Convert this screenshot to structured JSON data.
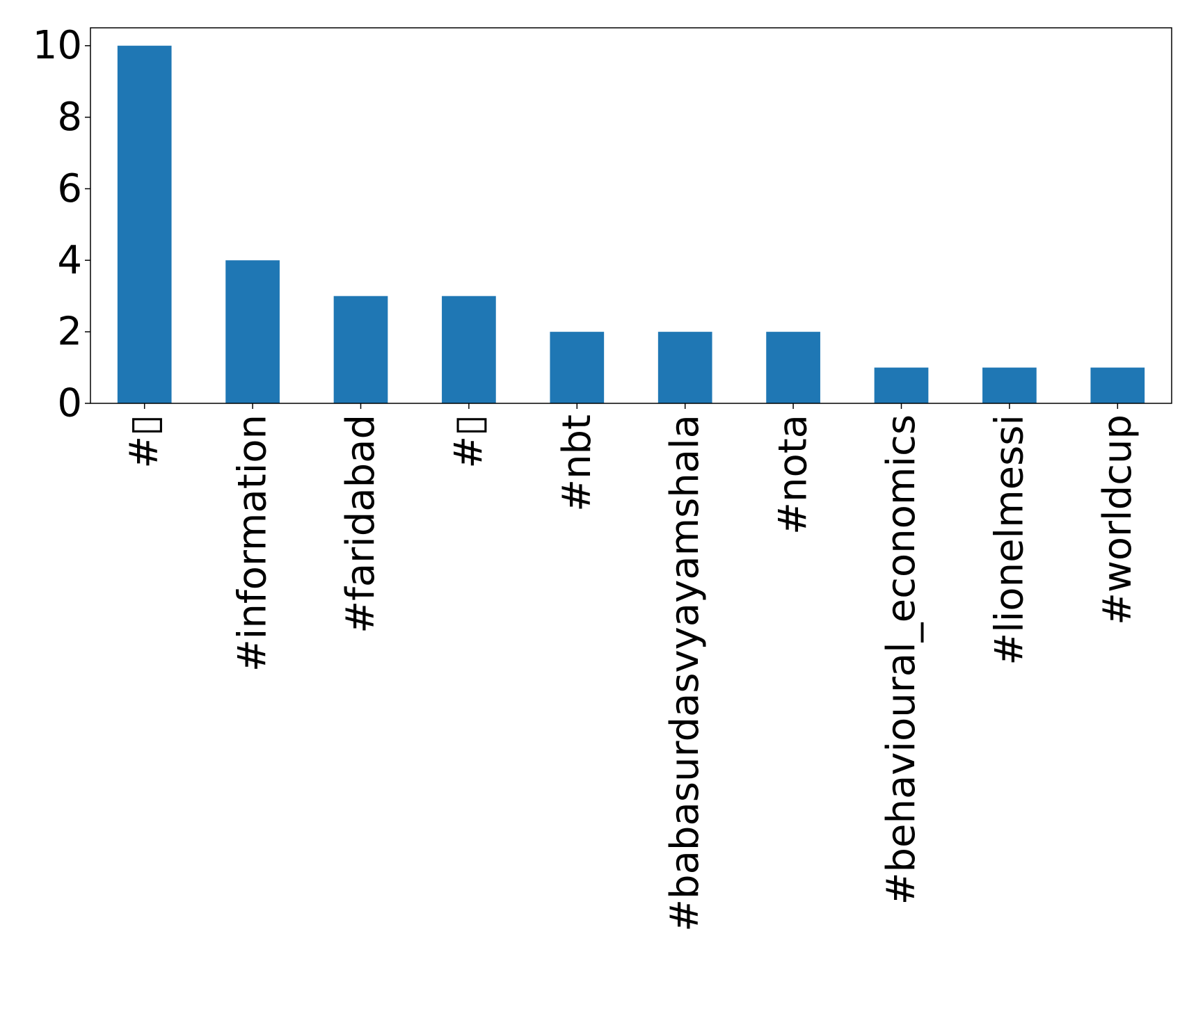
{
  "chart_data": {
    "type": "bar",
    "title": "",
    "xlabel": "",
    "ylabel": "",
    "categories": [
      "#▯",
      "#information",
      "#faridabad",
      "#▯",
      "#nbt",
      "#babasurdasvyayamshala",
      "#nota",
      "#behavioural_economics",
      "#lionelmessi",
      "#worldcup"
    ],
    "values": [
      10,
      4,
      3,
      3,
      2,
      2,
      2,
      1,
      1,
      1
    ],
    "ylim": [
      0,
      10.5
    ],
    "yticks": [
      0,
      2,
      4,
      6,
      8,
      10
    ],
    "grid": false,
    "legend": "none",
    "bar_color": "#1f77b4"
  }
}
